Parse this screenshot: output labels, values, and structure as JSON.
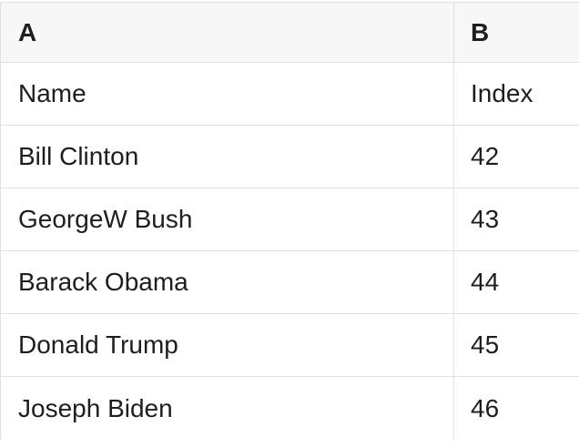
{
  "sheet": {
    "columns": [
      {
        "id": "A",
        "label": "A"
      },
      {
        "id": "B",
        "label": "B"
      }
    ],
    "rows": [
      {
        "a": "Name",
        "b": "Index"
      },
      {
        "a": "Bill Clinton",
        "b": "42"
      },
      {
        "a": "GeorgeW Bush",
        "b": "43"
      },
      {
        "a": "Barack Obama",
        "b": "44"
      },
      {
        "a": "Donald Trump",
        "b": "45"
      },
      {
        "a": "Joseph Biden",
        "b": "46"
      }
    ]
  },
  "colors": {
    "header_bg": "#f7f7f7",
    "border": "#e0e0e0",
    "text": "#1e1e1e"
  }
}
